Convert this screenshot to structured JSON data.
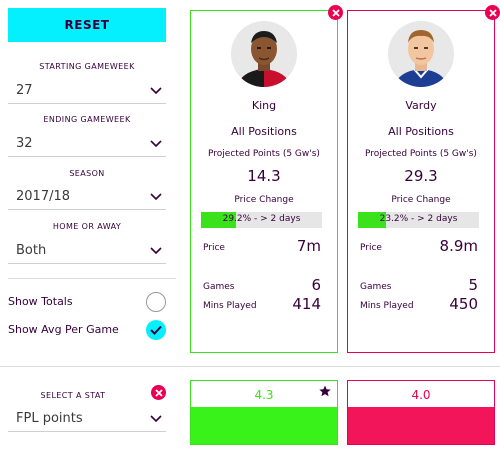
{
  "filters": {
    "reset_label": "RESET",
    "starting_gameweek": {
      "label": "STARTING GAMEWEEK",
      "value": "27"
    },
    "ending_gameweek": {
      "label": "ENDING GAMEWEEK",
      "value": "32"
    },
    "season": {
      "label": "SEASON",
      "value": "2017/18"
    },
    "home_or_away": {
      "label": "HOME OR AWAY",
      "value": "Both"
    },
    "show_totals": {
      "label": "Show Totals",
      "checked": false
    },
    "show_avg": {
      "label": "Show Avg Per Game",
      "checked": true
    }
  },
  "players": [
    {
      "name": "King",
      "position": "All Positions",
      "projected_label": "Projected Points (5 Gw's)",
      "projected_value": "14.3",
      "price_change_label": "Price Change",
      "price_change_text": "29.2% - > 2 days",
      "price_change_pct": 29.2,
      "price_label": "Price",
      "price_value": "7m",
      "games_label": "Games",
      "games_value": "6",
      "mins_label": "Mins Played",
      "mins_value": "414",
      "accent": "#39e21a",
      "kit": "red-black"
    },
    {
      "name": "Vardy",
      "position": "All Positions",
      "projected_label": "Projected Points (5 Gw's)",
      "projected_value": "29.3",
      "price_change_label": "Price Change",
      "price_change_text": "23.2% - > 2 days",
      "price_change_pct": 23.2,
      "price_label": "Price",
      "price_value": "8.9m",
      "games_label": "Games",
      "games_value": "5",
      "mins_label": "Mins Played",
      "mins_value": "450",
      "accent": "#e90052",
      "kit": "blue"
    }
  ],
  "stat": {
    "label": "SELECT A STAT",
    "value": "FPL points",
    "player1_value": "4.3",
    "player2_value": "4.0",
    "leader": "player1"
  },
  "colors": {
    "brand_cyan": "#05f0ff",
    "brand_purple": "#37003c",
    "green": "#39e21a",
    "pink": "#e90052"
  },
  "icons": [
    "chevron-down-icon",
    "close-icon",
    "check-icon",
    "star-icon"
  ]
}
